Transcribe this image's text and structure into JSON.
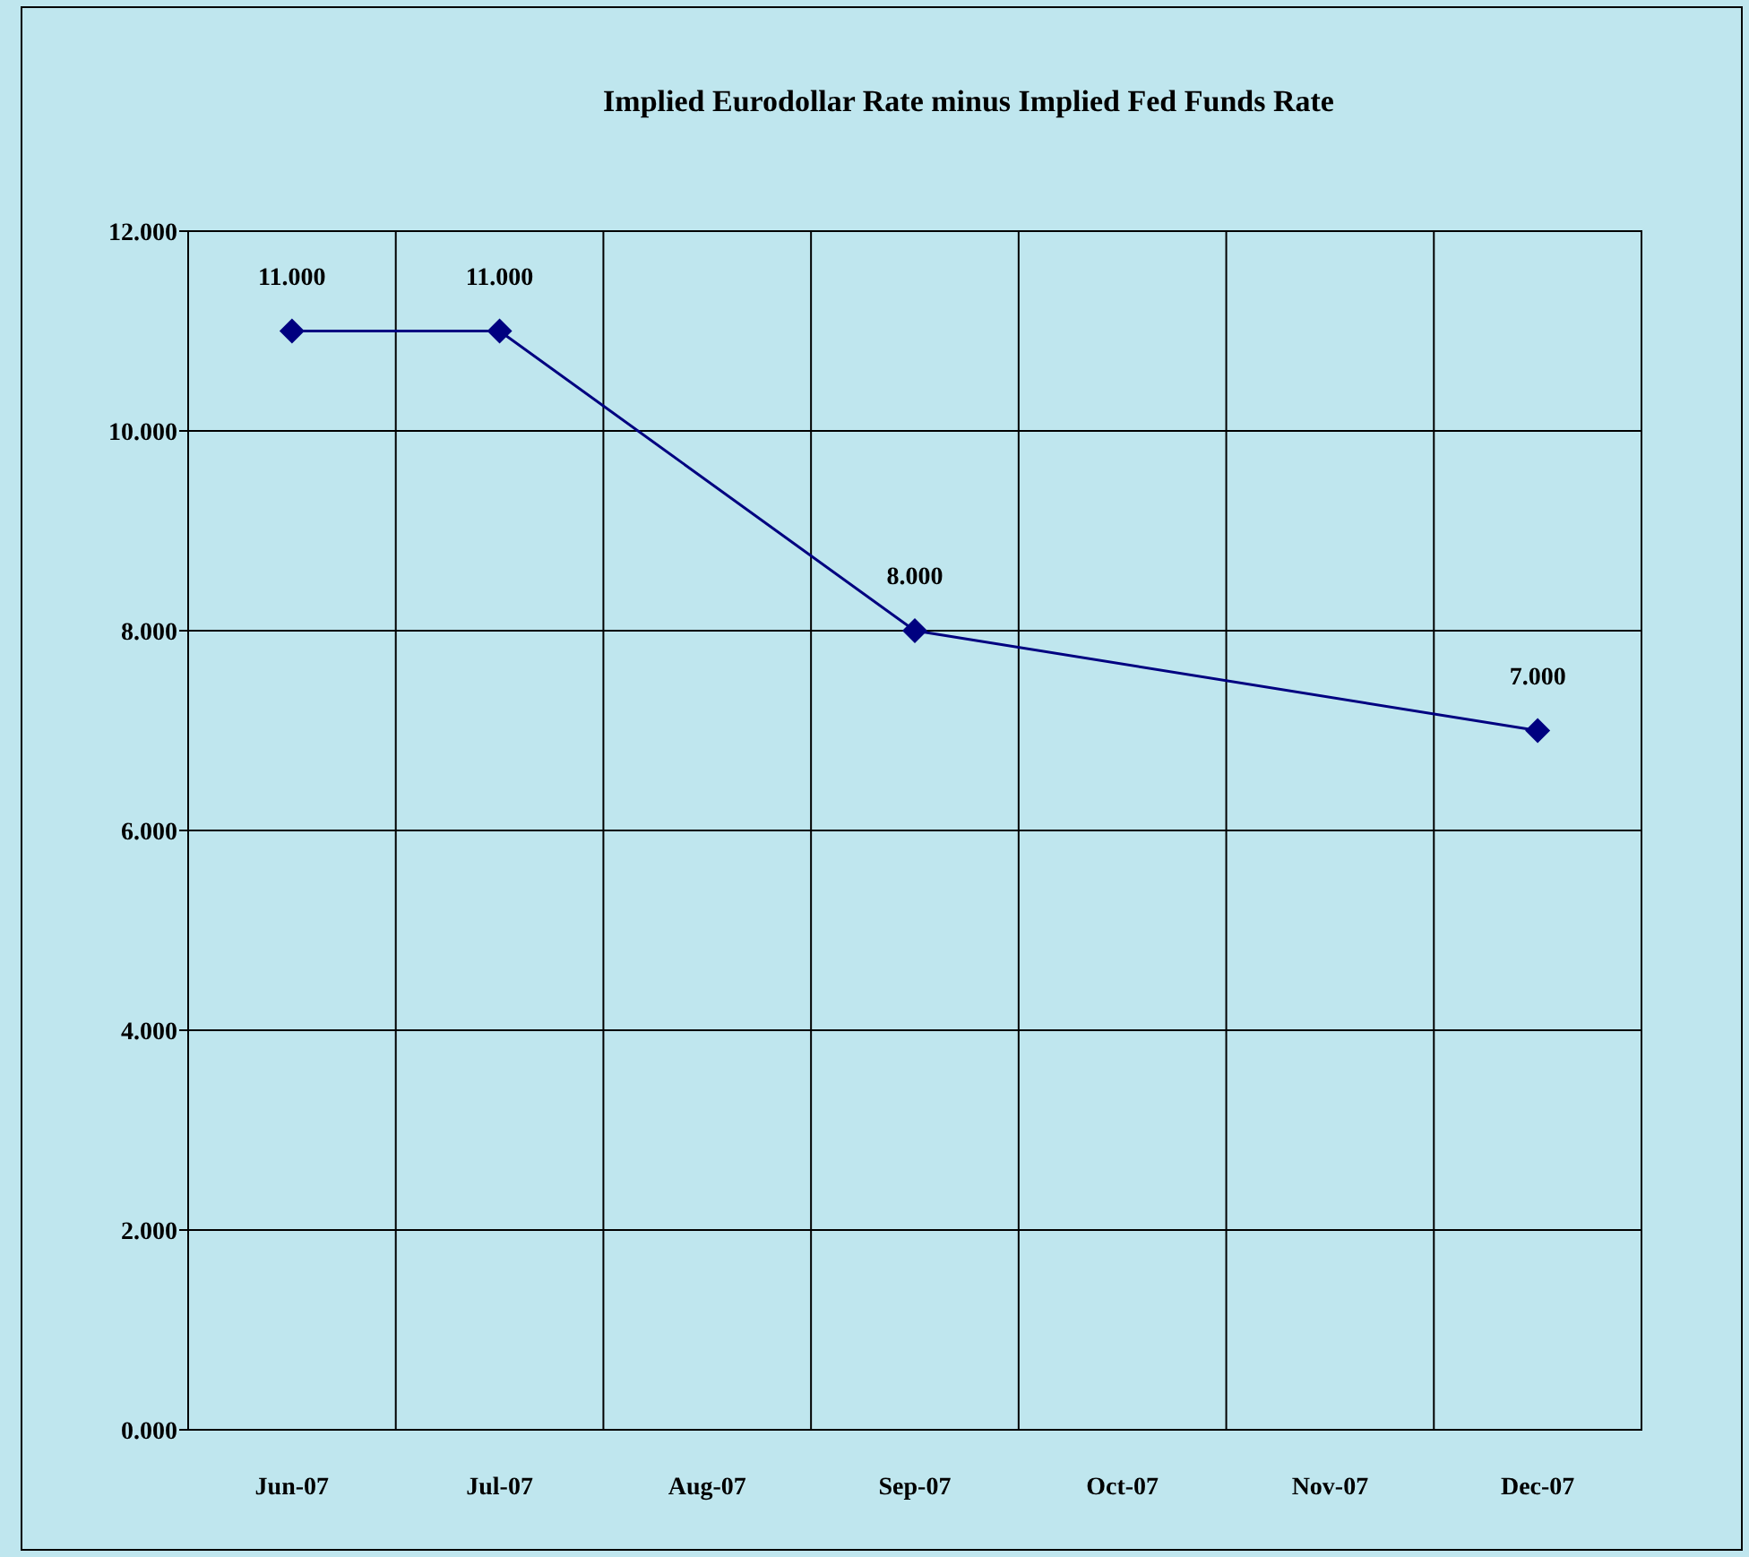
{
  "chart_data": {
    "type": "line",
    "title": "Implied Eurodollar Rate minus Implied Fed Funds Rate",
    "categories": [
      "Jun-07",
      "Jul-07",
      "Aug-07",
      "Sep-07",
      "Oct-07",
      "Nov-07",
      "Dec-07"
    ],
    "values": [
      11,
      11,
      null,
      8,
      null,
      null,
      7
    ],
    "value_labels": [
      "11.000",
      "11.000",
      null,
      "8.000",
      null,
      null,
      "7.000"
    ],
    "color": "#000080",
    "marker": "diamond",
    "line_style": "solid",
    "ylim": [
      0,
      12
    ],
    "yticks": [
      {
        "value": 0,
        "label": "0.000"
      },
      {
        "value": 2,
        "label": "2.000"
      },
      {
        "value": 4,
        "label": "4.000"
      },
      {
        "value": 6,
        "label": "6.000"
      },
      {
        "value": 8,
        "label": "8.000"
      },
      {
        "value": 10,
        "label": "10.000"
      },
      {
        "value": 12,
        "label": "12.000"
      }
    ],
    "grid": true
  }
}
